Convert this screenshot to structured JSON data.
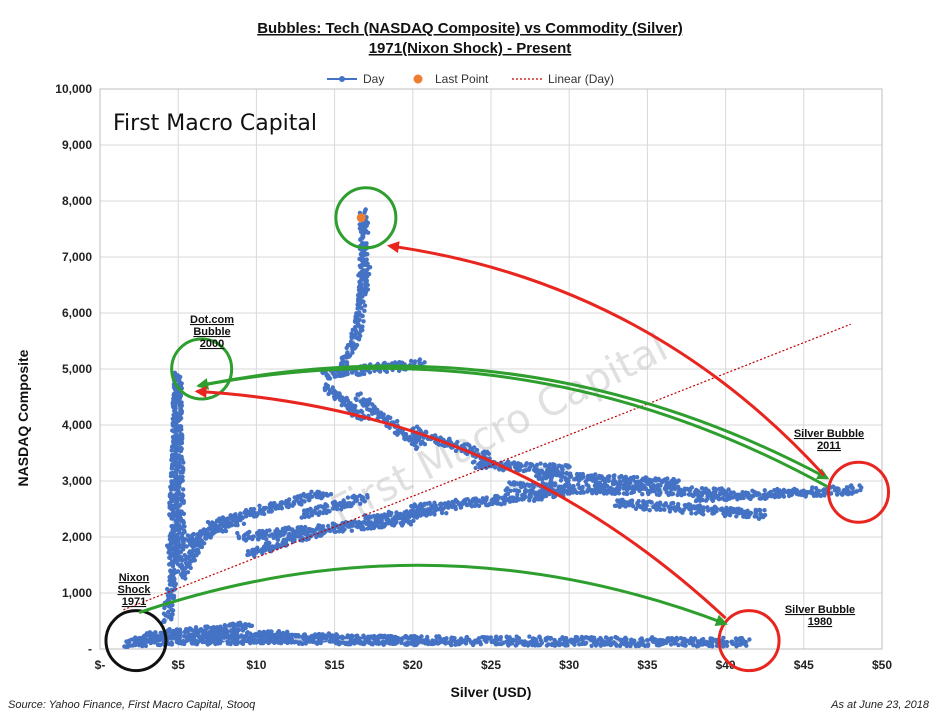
{
  "chart_data": {
    "type": "scatter",
    "title": "Bubbles: Tech (NASDAQ Composite) vs Commodity (Silver)",
    "subtitle": "1971(Nixon Shock) - Present",
    "xlabel": "Silver (USD)",
    "ylabel": "NASDAQ Composite",
    "xlim": [
      0,
      50
    ],
    "ylim": [
      0,
      10000
    ],
    "x_ticks": [
      "$-",
      "$5",
      "$10",
      "$15",
      "$20",
      "$25",
      "$30",
      "$35",
      "$40",
      "$45",
      "$50"
    ],
    "y_ticks": [
      "-",
      "1,000",
      "2,000",
      "3,000",
      "4,000",
      "5,000",
      "6,000",
      "7,000",
      "8,000",
      "9,000",
      "10,000"
    ],
    "grid": true,
    "legend": {
      "position": "top",
      "entries": [
        {
          "label": "Day",
          "color": "#4472c4"
        },
        {
          "label": "Last Point",
          "color": "#ed7d31"
        },
        {
          "label": "Linear (Day)",
          "color": "#c00000"
        }
      ]
    },
    "series": [
      {
        "name": "Day",
        "color": "#4472c4",
        "path_segments": [
          {
            "from": [
              1.6,
              100
            ],
            "to": [
              5.0,
              300
            ]
          },
          {
            "from": [
              2.0,
              120
            ],
            "to": [
              12.0,
              250
            ]
          },
          {
            "from": [
              3.0,
              220
            ],
            "to": [
              9.5,
              400
            ]
          },
          {
            "from": [
              6.0,
              150
            ],
            "to": [
              15.0,
              200
            ]
          },
          {
            "from": [
              10.0,
              180
            ],
            "to": [
              20.5,
              150
            ]
          },
          {
            "from": [
              15.0,
              160
            ],
            "to": [
              41.5,
              120
            ]
          },
          {
            "from": [
              4.3,
              500
            ],
            "to": [
              4.9,
              1900
            ]
          },
          {
            "from": [
              4.6,
              1600
            ],
            "to": [
              5.0,
              4900
            ]
          },
          {
            "from": [
              4.9,
              4800
            ],
            "to": [
              5.2,
              1500
            ]
          },
          {
            "from": [
              4.5,
              1800
            ],
            "to": [
              9.0,
              2300
            ]
          },
          {
            "from": [
              5.2,
              1300
            ],
            "to": [
              7.0,
              2200
            ]
          },
          {
            "from": [
              7.0,
              2200
            ],
            "to": [
              14.5,
              2800
            ]
          },
          {
            "from": [
              9.0,
              2000
            ],
            "to": [
              20.0,
              2300
            ]
          },
          {
            "from": [
              9.5,
              1700
            ],
            "to": [
              14.0,
              2100
            ]
          },
          {
            "from": [
              13.0,
              2400
            ],
            "to": [
              17.0,
              2700
            ]
          },
          {
            "from": [
              17.0,
              2300
            ],
            "to": [
              22.0,
              2500
            ]
          },
          {
            "from": [
              20.0,
              2500
            ],
            "to": [
              30.0,
              2800
            ]
          },
          {
            "from": [
              26.0,
              2900
            ],
            "to": [
              40.0,
              2800
            ]
          },
          {
            "from": [
              28.0,
              3100
            ],
            "to": [
              37.0,
              2950
            ]
          },
          {
            "from": [
              33.0,
              2600
            ],
            "to": [
              42.5,
              2400
            ]
          },
          {
            "from": [
              38.0,
              2700
            ],
            "to": [
              48.5,
              2850
            ]
          },
          {
            "from": [
              14.2,
              4900
            ],
            "to": [
              20.7,
              5100
            ]
          },
          {
            "from": [
              14.5,
              4700
            ],
            "to": [
              17.0,
              4100
            ]
          },
          {
            "from": [
              16.5,
              4500
            ],
            "to": [
              20.5,
              3600
            ]
          },
          {
            "from": [
              15.5,
              5000
            ],
            "to": [
              16.5,
              5700
            ]
          },
          {
            "from": [
              16.5,
              5700
            ],
            "to": [
              17.0,
              6800
            ]
          },
          {
            "from": [
              16.8,
              6500
            ],
            "to": [
              16.9,
              7800
            ]
          },
          {
            "from": [
              20.0,
              3900
            ],
            "to": [
              25.0,
              3400
            ]
          },
          {
            "from": [
              24.0,
              3300
            ],
            "to": [
              30.0,
              3200
            ]
          }
        ]
      },
      {
        "name": "Last Point",
        "color": "#ed7d31",
        "points": [
          {
            "x": 16.7,
            "y": 7700
          }
        ]
      },
      {
        "name": "Linear (Day)",
        "color": "#c00000",
        "line": [
          {
            "x": 1.5,
            "y": 700
          },
          {
            "x": 48.0,
            "y": 5800
          }
        ]
      }
    ],
    "annotations": [
      {
        "text_lines": [
          "Dot.com",
          "Bubble",
          "2000"
        ],
        "x": 5.0,
        "y": 5900
      },
      {
        "text_lines": [
          "Nixon",
          "Shock",
          "1971"
        ],
        "x": 2.5,
        "y": 1100
      },
      {
        "text_lines": [
          "Silver Bubble",
          "2011"
        ],
        "x": 46.5,
        "y": 3700
      },
      {
        "text_lines": [
          "Silver Bubble",
          "1980"
        ],
        "x": 46.0,
        "y": 600
      }
    ],
    "highlight_circles": [
      {
        "name": "dotcom-bubble-circle",
        "color": "#2e9e2e",
        "x": 6.5,
        "y": 5000
      },
      {
        "name": "current-top-circle",
        "color": "#2e9e2e",
        "x": 17.0,
        "y": 7700
      },
      {
        "name": "nixon-shock-circle",
        "color": "#111111",
        "x": 2.3,
        "y": 150
      },
      {
        "name": "silver-bubble-2011-circle",
        "color": "#e8261f",
        "x": 48.5,
        "y": 2800
      },
      {
        "name": "silver-bubble-1980-circle",
        "color": "#e8261f",
        "x": 41.5,
        "y": 150
      }
    ],
    "arrows": [
      {
        "name": "arrow-2011-to-dotcom",
        "color": "#2e9e2e",
        "from": [
          46.5,
          2900
        ],
        "to": [
          6.3,
          4700
        ]
      },
      {
        "name": "arrow-dotcom-to-2011",
        "color": "#2e9e2e",
        "from": [
          6.3,
          4700
        ],
        "to": [
          46.5,
          3050
        ]
      },
      {
        "name": "arrow-nixon-to-1980",
        "color": "#2e9e2e",
        "from": [
          2.5,
          650
        ],
        "to": [
          40.0,
          450
        ]
      },
      {
        "name": "arrow-2011-to-now",
        "color": "#e8261f",
        "from": [
          46.3,
          3100
        ],
        "to": [
          18.5,
          7200
        ]
      },
      {
        "name": "arrow-1980-to-dotcom",
        "color": "#e8261f",
        "from": [
          40.0,
          550
        ],
        "to": [
          6.2,
          4600
        ]
      }
    ]
  },
  "brand": "First Macro Capital",
  "watermark": "First Macro Capital",
  "footer": {
    "source": "Source: Yahoo Finance, First Macro Capital, Stooq",
    "date": "As at June 23, 2018"
  }
}
